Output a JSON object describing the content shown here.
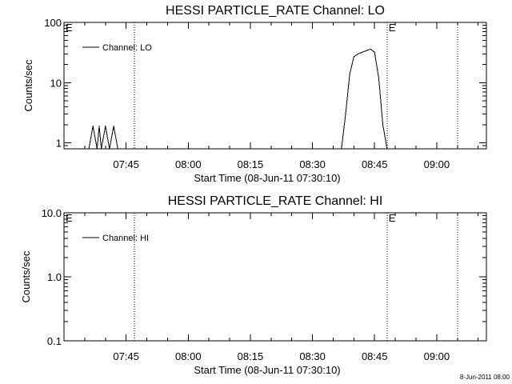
{
  "chart_data": [
    {
      "type": "line",
      "title": "HESSI PARTICLE_RATE Channel: LO",
      "xlabel": "Start Time (08-Jun-11 07:30:10)",
      "ylabel": "Counts/sec",
      "yscale": "log",
      "ylim": [
        0.8,
        100
      ],
      "yticks": [
        1,
        10,
        100
      ],
      "ytick_labels": [
        "1",
        "10",
        "100"
      ],
      "xlim": [
        "07:30",
        "09:12"
      ],
      "xticks": [
        "07:45",
        "08:00",
        "08:15",
        "08:30",
        "08:45",
        "09:00"
      ],
      "event_lines": [
        "07:47",
        "08:48",
        "09:05"
      ],
      "event_labels": [
        {
          "x": "07:30",
          "text": "E"
        },
        {
          "x": "08:48",
          "text": "E"
        }
      ],
      "legend": {
        "label": "Channel: LO",
        "position": "top-left"
      },
      "series": [
        {
          "name": "Channel: LO",
          "x": [
            "07:36",
            "07:37",
            "07:38",
            "07:38.5",
            "07:39",
            "07:40",
            "07:41",
            "07:42",
            "07:43",
            "08:37",
            "08:38",
            "08:39",
            "08:40",
            "08:41",
            "08:42",
            "08:43",
            "08:44",
            "08:45",
            "08:46",
            "08:47",
            "08:48"
          ],
          "y": [
            0.8,
            1.9,
            0.8,
            1.9,
            0.8,
            1.9,
            0.8,
            1.9,
            0.8,
            0.8,
            3,
            14,
            27,
            30,
            32,
            34,
            36,
            32,
            12,
            2,
            0.8
          ]
        }
      ]
    },
    {
      "type": "line",
      "title": "HESSI PARTICLE_RATE Channel: HI",
      "xlabel": "Start Time (08-Jun-11 07:30:10)",
      "ylabel": "Counts/sec",
      "yscale": "log",
      "ylim": [
        0.1,
        10
      ],
      "yticks": [
        0.1,
        1,
        10
      ],
      "ytick_labels": [
        "0.1",
        "1.0",
        "10.0"
      ],
      "xlim": [
        "07:30",
        "09:12"
      ],
      "xticks": [
        "07:45",
        "08:00",
        "08:15",
        "08:30",
        "08:45",
        "09:00"
      ],
      "event_lines": [
        "07:47",
        "08:48",
        "09:05"
      ],
      "event_labels": [
        {
          "x": "07:30",
          "text": "E"
        },
        {
          "x": "08:48",
          "text": "E"
        }
      ],
      "legend": {
        "label": "Channel: HI",
        "position": "top-left"
      },
      "series": [
        {
          "name": "Channel: HI",
          "x": [],
          "y": []
        }
      ]
    }
  ],
  "footer": {
    "timestamp": "8-Jun-2011 08:00"
  }
}
